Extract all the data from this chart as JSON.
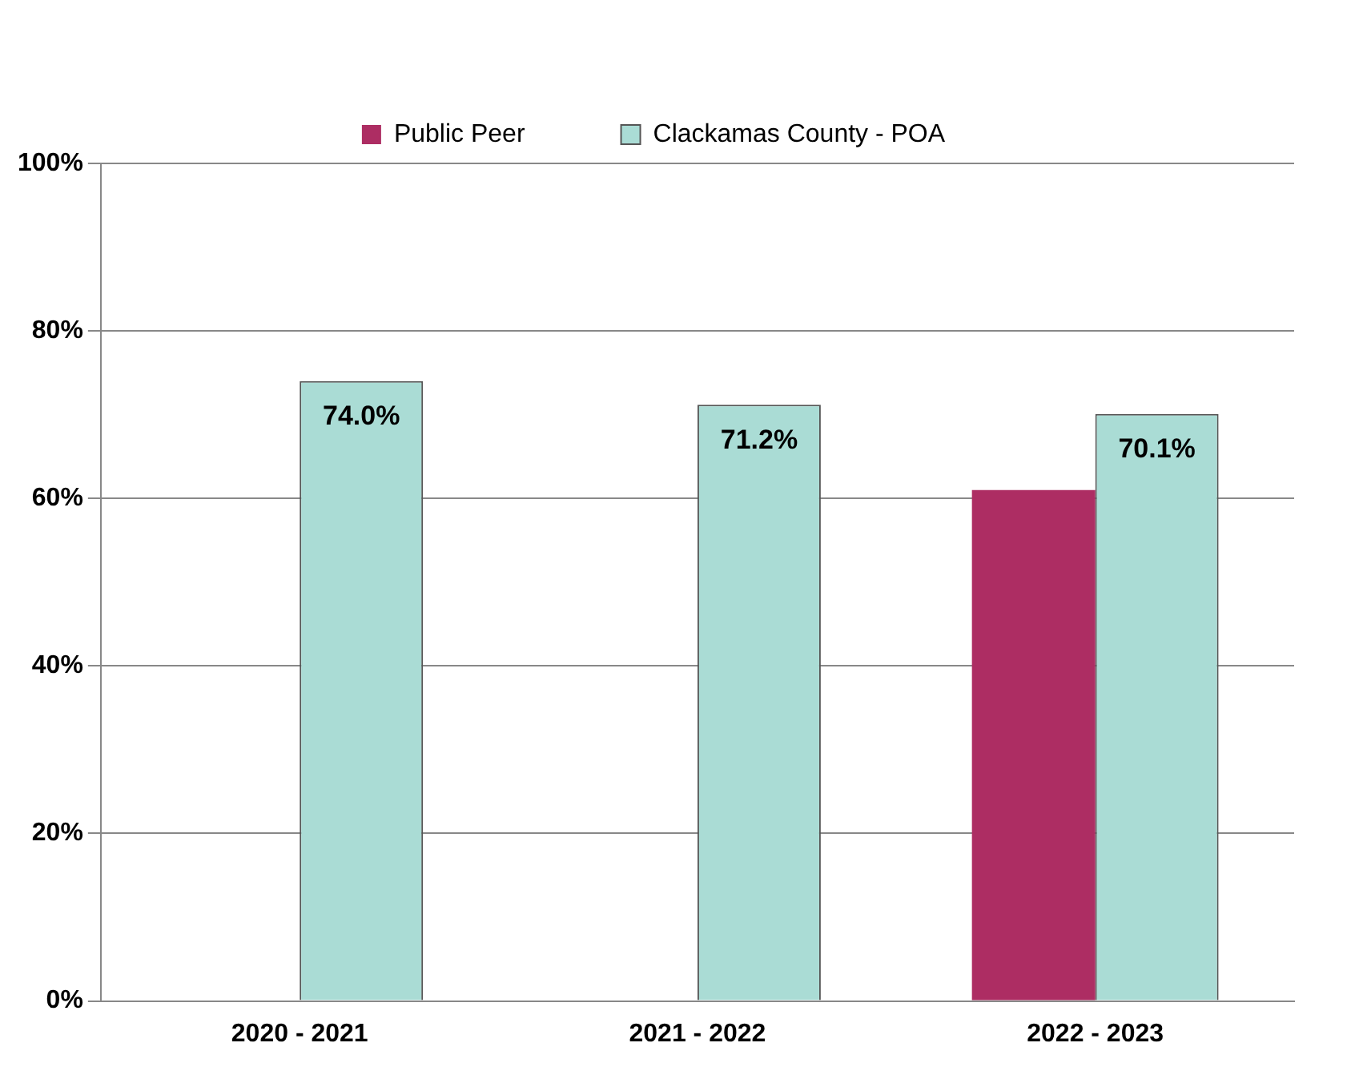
{
  "chart_data": {
    "type": "bar",
    "categories": [
      "2020 - 2021",
      "2021 - 2022",
      "2022 - 2023"
    ],
    "series": [
      {
        "name": "Public Peer",
        "color": "#ad2d63",
        "values": [
          null,
          null,
          61
        ]
      },
      {
        "name": "Clackamas County - POA",
        "color": "#aadcd5",
        "values": [
          74.0,
          71.2,
          70.1
        ],
        "value_labels": [
          "74.0%",
          "71.2%",
          "70.1%"
        ]
      }
    ],
    "ylim": [
      0,
      100
    ],
    "yticks": [
      {
        "value": 0,
        "label": "0%"
      },
      {
        "value": 20,
        "label": "20%"
      },
      {
        "value": 40,
        "label": "40%"
      },
      {
        "value": 60,
        "label": "60%"
      },
      {
        "value": 80,
        "label": "80%"
      },
      {
        "value": 100,
        "label": "100%"
      }
    ],
    "grid": "y",
    "legend": "top"
  }
}
